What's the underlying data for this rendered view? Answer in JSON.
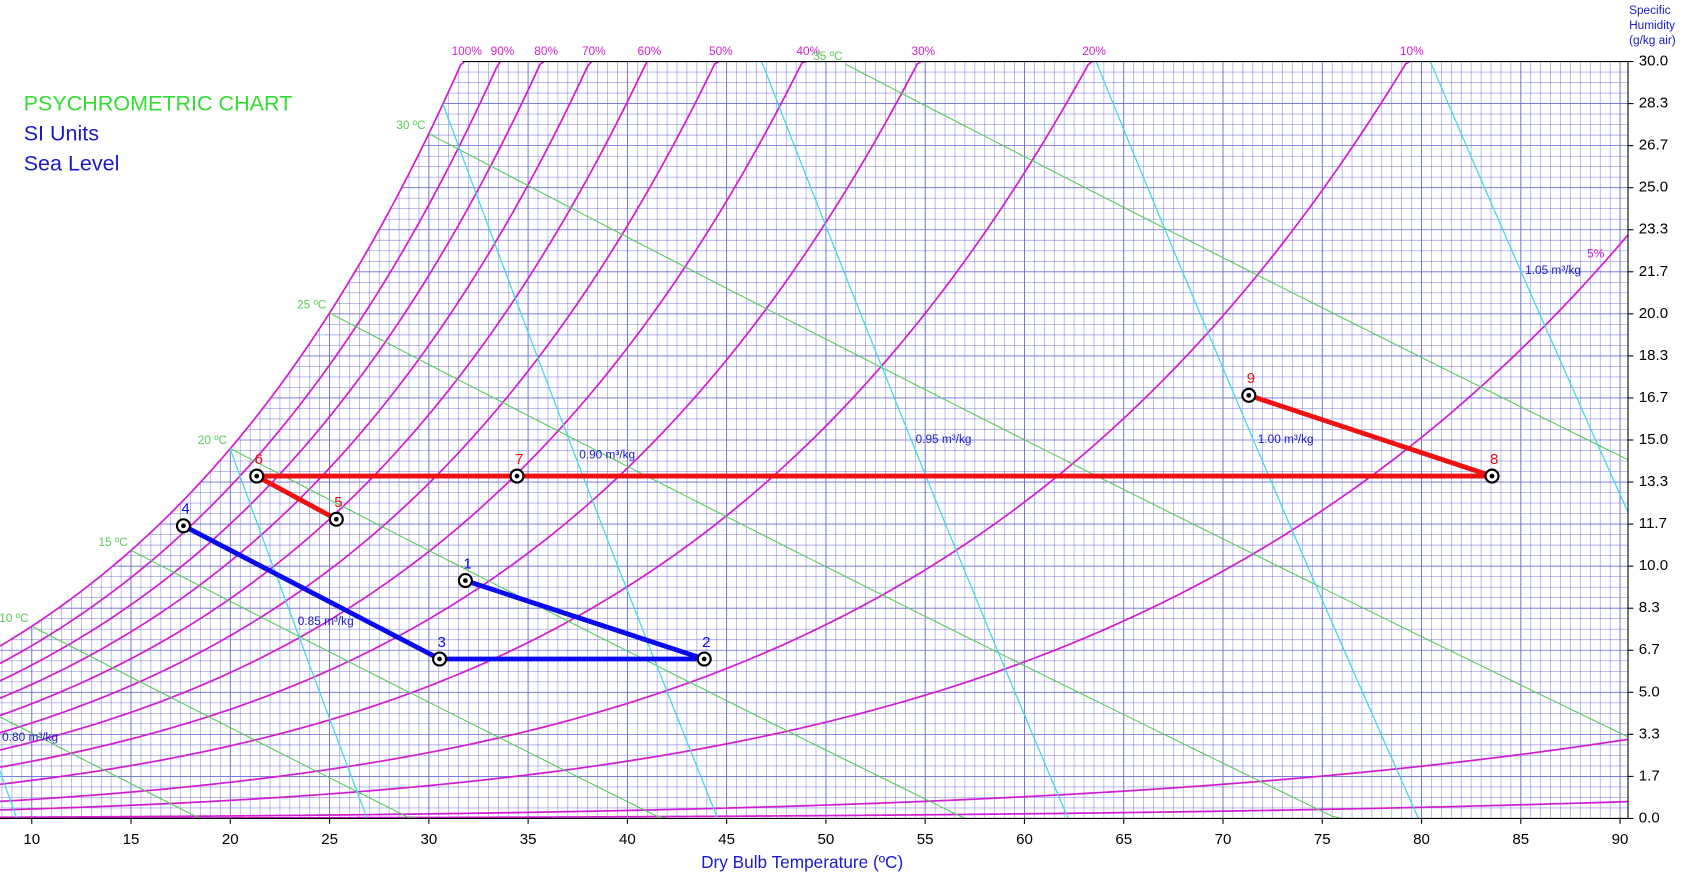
{
  "chart_data": {
    "type": "psychrometric",
    "title_lines": [
      {
        "text": "PSYCHROMETRIC CHART",
        "color": "#33dd33"
      },
      {
        "text": "SI Units",
        "color": "#1a1acc"
      },
      {
        "text": "Sea Level",
        "color": "#1a1acc"
      }
    ],
    "x_label": "Dry Bulb Temperature (ºC)",
    "y_label_lines": [
      "Specific",
      "Humidity",
      "(g/kg air)"
    ],
    "xlim": [
      8.4,
      90.4
    ],
    "xticks": [
      10,
      15,
      20,
      25,
      30,
      35,
      40,
      45,
      50,
      55,
      60,
      65,
      70,
      75,
      80,
      85,
      90
    ],
    "ylim": [
      0,
      30
    ],
    "yticks": [
      {
        "value": 0,
        "label": "0.0"
      },
      {
        "value": 1.667,
        "label": "1.7"
      },
      {
        "value": 3.333,
        "label": "3.3"
      },
      {
        "value": 5,
        "label": "5.0"
      },
      {
        "value": 6.667,
        "label": "6.7"
      },
      {
        "value": 8.333,
        "label": "8.3"
      },
      {
        "value": 10,
        "label": "10.0"
      },
      {
        "value": 11.667,
        "label": "11.7"
      },
      {
        "value": 13.333,
        "label": "13.3"
      },
      {
        "value": 15,
        "label": "15.0"
      },
      {
        "value": 16.667,
        "label": "16.7"
      },
      {
        "value": 18.333,
        "label": "18.3"
      },
      {
        "value": 20,
        "label": "20.0"
      },
      {
        "value": 21.667,
        "label": "21.7"
      },
      {
        "value": 23.333,
        "label": "23.3"
      },
      {
        "value": 25,
        "label": "25.0"
      },
      {
        "value": 26.667,
        "label": "26.7"
      },
      {
        "value": 28.333,
        "label": "28.3"
      },
      {
        "value": 30,
        "label": "30.0"
      }
    ],
    "grid": true,
    "pressure_kpa": 101.325,
    "rh_color": "#d21ed2",
    "rh_curves": [
      {
        "value": 100,
        "label": "100%"
      },
      {
        "value": 90,
        "label": "90%"
      },
      {
        "value": 80,
        "label": "80%"
      },
      {
        "value": 70,
        "label": "70%"
      },
      {
        "value": 60,
        "label": "60%"
      },
      {
        "value": 50,
        "label": "50%"
      },
      {
        "value": 40,
        "label": "40%"
      },
      {
        "value": 30,
        "label": "30%"
      },
      {
        "value": 20,
        "label": "20%"
      },
      {
        "value": 10,
        "label": "10%"
      },
      {
        "value": 5,
        "label": "5%"
      },
      {
        "value": 0.7,
        "label": null
      },
      {
        "value": 0.15,
        "label": null
      }
    ],
    "wet_bulb_color": "#55cc55",
    "wet_bulb_lines": [
      {
        "value": 5,
        "label": null
      },
      {
        "value": 10,
        "label": "10 ºC"
      },
      {
        "value": 15,
        "label": "15 ºC"
      },
      {
        "value": 20,
        "label": "20 ºC"
      },
      {
        "value": 25,
        "label": "25 ºC"
      },
      {
        "value": 30,
        "label": "30 ºC"
      },
      {
        "value": 35,
        "label": "35 ºC"
      }
    ],
    "volume_color": "#45d8e8",
    "volume_lines": [
      {
        "value": 0.8,
        "label": "0.80 m³/kg"
      },
      {
        "value": 0.85,
        "label": "0.85 m³/kg"
      },
      {
        "value": 0.9,
        "label": "0.90 m³/kg"
      },
      {
        "value": 0.95,
        "label": "0.95 m³/kg"
      },
      {
        "value": 1.0,
        "label": "1.00 m³/kg"
      },
      {
        "value": 1.05,
        "label": "1.05 m³/kg"
      }
    ],
    "series": [
      {
        "color": "#0a0aee",
        "x": [
          31.84,
          43.87,
          30.54,
          17.64
        ],
        "values": [
          9.43,
          6.32,
          6.32,
          11.6
        ],
        "point_labels": [
          "1",
          "2",
          "3",
          "4"
        ]
      },
      {
        "color": "#ee1111",
        "x": [
          25.34,
          21.33,
          34.44,
          83.55,
          71.3
        ],
        "values": [
          11.86,
          13.57,
          13.57,
          13.57,
          16.77
        ],
        "point_labels": [
          "5",
          "6",
          "7",
          "8",
          "9"
        ]
      }
    ]
  }
}
